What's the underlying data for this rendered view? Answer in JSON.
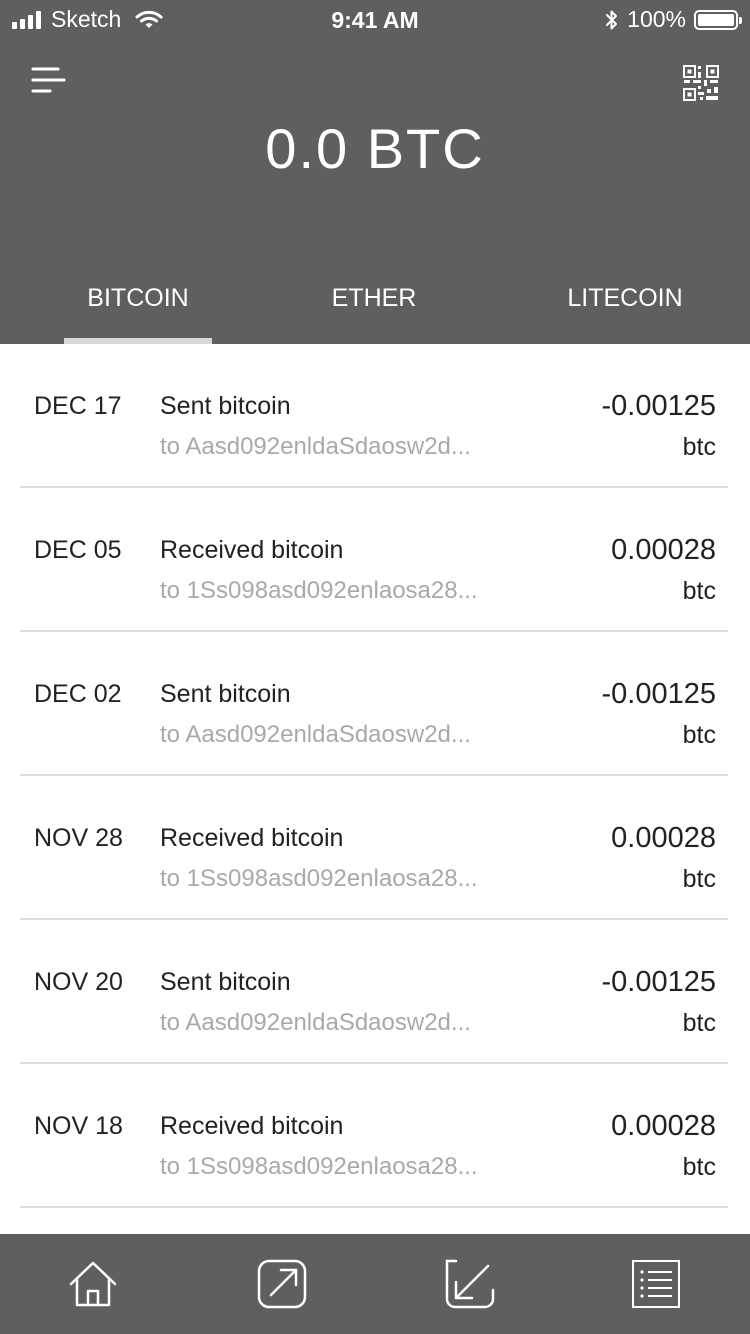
{
  "status_bar": {
    "carrier": "Sketch",
    "time": "9:41 AM",
    "battery": "100%",
    "battery_level": 1.0,
    "icons": [
      "signal-icon",
      "wifi-icon",
      "bluetooth-icon",
      "battery-icon"
    ]
  },
  "header": {
    "balance": "0.0 BTC",
    "menu_icon": "menu-icon",
    "qr_icon": "qr-code-icon"
  },
  "tabs": [
    {
      "label": "BITCOIN",
      "active": true
    },
    {
      "label": "ETHER",
      "active": false
    },
    {
      "label": "LITECOIN",
      "active": false
    }
  ],
  "transactions": [
    {
      "date": "DEC 17",
      "title": "Sent bitcoin",
      "address": "to Aasd092enldaSdaosw2d...",
      "amount": "-0.00125",
      "unit": "btc"
    },
    {
      "date": "DEC 05",
      "title": "Received bitcoin",
      "address": "to 1Ss098asd092enlaosa28...",
      "amount": "0.00028",
      "unit": "btc"
    },
    {
      "date": "DEC 02",
      "title": "Sent bitcoin",
      "address": "to Aasd092enldaSdaosw2d...",
      "amount": "-0.00125",
      "unit": "btc"
    },
    {
      "date": "NOV 28",
      "title": "Received bitcoin",
      "address": "to 1Ss098asd092enlaosa28...",
      "amount": "0.00028",
      "unit": "btc"
    },
    {
      "date": "NOV 20",
      "title": "Sent bitcoin",
      "address": "to Aasd092enldaSdaosw2d...",
      "amount": "-0.00125",
      "unit": "btc"
    },
    {
      "date": "NOV 18",
      "title": "Received bitcoin",
      "address": "to 1Ss098asd092enlaosa28...",
      "amount": "0.00028",
      "unit": "btc"
    }
  ],
  "bottom_nav": [
    "home-icon",
    "send-icon",
    "receive-icon",
    "list-icon"
  ],
  "colors": {
    "header_bg": "#5f5f5f",
    "tab_indicator": "#d8d8d8",
    "text_primary": "#222222",
    "text_secondary": "#a9a9a9",
    "divider": "#dcdcdc"
  }
}
